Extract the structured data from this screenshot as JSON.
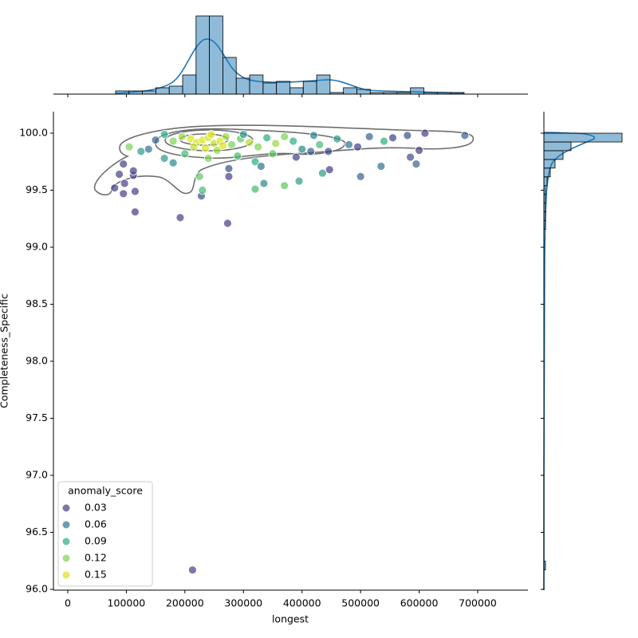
{
  "chart_data": [
    {
      "type": "scatter",
      "x_label": "longest",
      "y_label": "Completeness_Specific",
      "xlim": [
        -24500,
        785800
      ],
      "ylim": [
        95.993,
        100.189
      ],
      "xticks": [
        0,
        100000,
        200000,
        300000,
        400000,
        500000,
        600000,
        700000
      ],
      "yticks": [
        {
          "value": 96.0,
          "label": "96.0"
        },
        96.5,
        {
          "value": 97.0,
          "label": "97.0"
        },
        97.5,
        {
          "value": 98.0,
          "label": "98.0"
        },
        98.5,
        {
          "value": 99.0,
          "label": "99.0"
        },
        99.5,
        {
          "value": 100.0,
          "label": "100.0"
        }
      ],
      "legend_title": "anomaly_score",
      "legend_position": "lower left",
      "hue_levels": [
        0.03,
        0.06,
        0.09,
        0.12,
        0.15
      ],
      "hue_colors": [
        "#433e85",
        "#2c728e",
        "#28ae80",
        "#7ad151",
        "#d8e219"
      ],
      "x": [
        213000,
        273000,
        192000,
        115000,
        80000,
        95000,
        115000,
        97000,
        112000,
        112000,
        88000,
        95000,
        228000,
        230000,
        275000,
        275000,
        320000,
        335000,
        370000,
        395000,
        435000,
        447000,
        500000,
        535000,
        585000,
        595000,
        105000,
        125000,
        138000,
        150000,
        165000,
        180000,
        195000,
        210000,
        220000,
        230000,
        240000,
        250000,
        260000,
        270000,
        280000,
        295000,
        310000,
        325000,
        340000,
        355000,
        370000,
        385000,
        400000,
        415000,
        430000,
        445000,
        460000,
        480000,
        495000,
        515000,
        540000,
        555000,
        580000,
        600000,
        610000,
        678000,
        165000,
        180000,
        200000,
        215000,
        225000,
        240000,
        255000,
        290000,
        320000,
        330000,
        390000,
        245000,
        265000,
        235000,
        300000,
        350000,
        420000
      ],
      "values": [
        96.17,
        99.21,
        99.26,
        99.31,
        99.52,
        99.47,
        99.49,
        99.56,
        99.63,
        99.67,
        99.64,
        99.73,
        99.45,
        99.5,
        99.62,
        99.69,
        99.51,
        99.56,
        99.54,
        99.58,
        99.65,
        99.68,
        99.62,
        99.71,
        99.79,
        99.73,
        99.88,
        99.84,
        99.86,
        99.94,
        99.99,
        99.93,
        99.97,
        99.95,
        99.92,
        99.94,
        99.96,
        99.91,
        99.93,
        99.97,
        99.9,
        99.95,
        99.92,
        99.88,
        99.96,
        99.91,
        99.97,
        99.93,
        99.86,
        99.84,
        99.9,
        99.84,
        99.95,
        99.9,
        99.88,
        99.97,
        99.93,
        99.96,
        99.98,
        99.85,
        100.0,
        99.98,
        99.78,
        99.74,
        99.82,
        99.88,
        99.62,
        99.78,
        99.85,
        99.8,
        99.75,
        99.71,
        99.79,
        99.99,
        99.89,
        99.87,
        99.99,
        99.82,
        99.98
      ],
      "hue": [
        0.03,
        0.03,
        0.03,
        0.03,
        0.03,
        0.02,
        0.02,
        0.02,
        0.02,
        0.03,
        0.03,
        0.02,
        0.04,
        0.1,
        0.02,
        0.04,
        0.1,
        0.07,
        0.11,
        0.08,
        0.08,
        0.03,
        0.05,
        0.06,
        0.04,
        0.05,
        0.12,
        0.08,
        0.06,
        0.05,
        0.09,
        0.12,
        0.13,
        0.15,
        0.16,
        0.15,
        0.16,
        0.14,
        0.16,
        0.13,
        0.12,
        0.11,
        0.14,
        0.12,
        0.09,
        0.13,
        0.12,
        0.09,
        0.07,
        0.05,
        0.1,
        0.04,
        0.08,
        0.06,
        0.03,
        0.05,
        0.09,
        0.03,
        0.04,
        0.02,
        0.03,
        0.05,
        0.08,
        0.07,
        0.1,
        0.14,
        0.11,
        0.12,
        0.13,
        0.1,
        0.09,
        0.06,
        0.03,
        0.15,
        0.17,
        0.16,
        0.08,
        0.11,
        0.07
      ]
    },
    {
      "type": "histogram",
      "orientation": "vertical",
      "color": "#1f77b4",
      "bins": [
        81700,
        104586,
        127472,
        150358,
        173244,
        196130,
        219016,
        241902,
        264788,
        287674,
        310560,
        333446,
        356332,
        379218,
        402104,
        424990,
        447876,
        470762,
        493648,
        516534,
        539420,
        562306,
        585192,
        608078,
        630964,
        653850,
        676736
      ],
      "counts": [
        2,
        2,
        2,
        4,
        5,
        12,
        49,
        49,
        23,
        10,
        12,
        7,
        8,
        4,
        8,
        12,
        1,
        4,
        3,
        1,
        1,
        1,
        4,
        1,
        1,
        1
      ],
      "ylim": [
        0,
        51
      ]
    },
    {
      "type": "histogram",
      "orientation": "horizontal",
      "color": "#1f77b4",
      "bins": [
        96.17,
        96.247,
        96.323,
        96.4,
        96.476,
        96.553,
        96.63,
        96.706,
        96.783,
        96.859,
        96.936,
        97.013,
        97.089,
        97.166,
        97.242,
        97.319,
        97.396,
        97.472,
        97.549,
        97.625,
        97.702,
        97.779,
        97.855,
        97.932,
        98.008,
        98.085,
        98.162,
        98.238,
        98.315,
        98.391,
        98.468,
        98.545,
        98.621,
        98.698,
        98.774,
        98.851,
        98.928,
        99.004,
        99.081,
        99.157,
        99.234,
        99.311,
        99.387,
        99.464,
        99.54,
        99.617,
        99.694,
        99.77,
        99.847,
        99.923,
        100.0
      ],
      "counts": [
        1,
        0,
        0,
        0,
        0,
        0,
        0,
        0,
        0,
        0,
        0,
        0,
        0,
        0,
        0,
        0,
        0,
        0,
        0,
        0,
        0,
        0,
        0,
        0,
        0,
        0,
        0,
        0,
        0,
        0,
        0,
        0,
        0,
        0,
        0,
        0,
        0,
        0,
        0,
        1,
        1,
        1,
        1,
        1,
        2,
        4,
        7,
        12,
        17,
        49
      ],
      "xlim": [
        0,
        51
      ]
    }
  ]
}
